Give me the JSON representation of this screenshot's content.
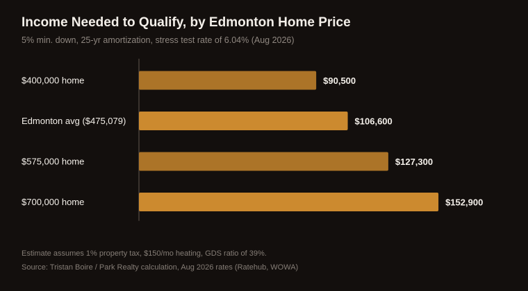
{
  "header": {
    "title": "Income Needed to Qualify, by Edmonton Home Price",
    "subtitle": "5% min. down, 25-yr amortization, stress test rate of 6.04% (Aug 2026)"
  },
  "footer": {
    "note": "Estimate assumes 1% property tax, $150/mo heating, GDS ratio of 39%.",
    "source": "Source: Tristan Boire / Park Realty calculation, Aug 2026 rates (Ratehub, WOWA)"
  },
  "chart_data": {
    "type": "bar",
    "orientation": "horizontal",
    "title": "Income Needed to Qualify, by Edmonton Home Price",
    "subtitle": "5% min. down, 25-yr amortization, stress test rate of 6.04% (Aug 2026)",
    "categories": [
      "$400,000 home",
      "Edmonton avg ($475,079)",
      "$575,000 home",
      "$700,000 home"
    ],
    "values": [
      90500,
      106600,
      127300,
      152900
    ],
    "value_labels": [
      "$90,500",
      "$106,600",
      "$127,300",
      "$152,900"
    ],
    "bar_colors": [
      "#ac7428",
      "#cc8a2f",
      "#ac7428",
      "#cc8a2f"
    ],
    "xlim": [
      0,
      155000
    ],
    "grid": false,
    "legend": "none",
    "colors": {
      "background": "#130f0d",
      "axis": "#3a332e",
      "category_text": "#f3efe9",
      "value_text": "#f3efe9"
    }
  }
}
